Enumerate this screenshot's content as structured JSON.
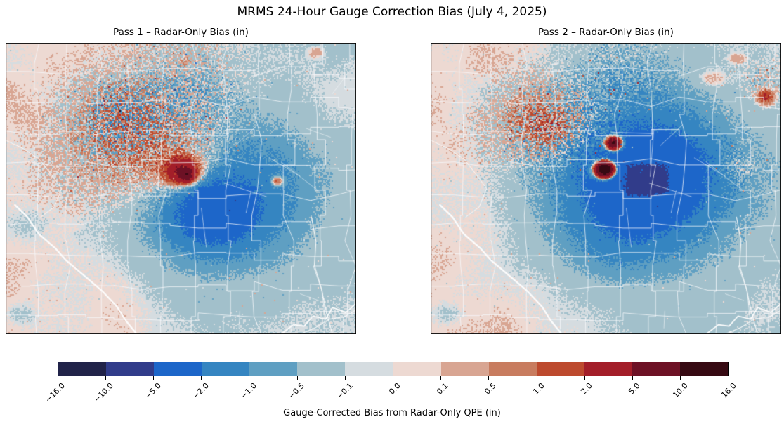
{
  "chart_data": {
    "type": "heatmap",
    "title": "MRMS 24-Hour Gauge Correction Bias (July 4, 2025)",
    "value_range": [
      -16,
      16
    ],
    "colormap": "diverging blue-gray-red (balance-like), 14 discrete bins",
    "panels": [
      {
        "title": "Pass 1 – Radar-Only Bias (in)",
        "seed": 7,
        "base": {
          "west": 0.055,
          "east": -0.085,
          "transition_start": 0.28,
          "transition_width": 0.32
        },
        "gaussians": [
          [
            0.455,
            0.395,
            0.115,
            0.1,
            1.0
          ],
          [
            0.505,
            0.44,
            0.032,
            0.03,
            5.5
          ],
          [
            0.517,
            0.455,
            0.013,
            0.013,
            6.0
          ],
          [
            0.615,
            0.565,
            0.185,
            0.17,
            -1.0
          ],
          [
            0.6,
            0.585,
            0.088,
            0.082,
            -2.6
          ],
          [
            0.755,
            0.42,
            0.105,
            0.1,
            -0.55
          ],
          [
            0.52,
            0.21,
            0.14,
            0.11,
            -0.32
          ],
          [
            0.775,
            0.475,
            0.012,
            0.012,
            2.4
          ],
          [
            0.52,
            0.07,
            0.02,
            0.015,
            0.45
          ],
          [
            0.885,
            0.035,
            0.013,
            0.011,
            0.5
          ],
          [
            0.045,
            0.93,
            0.03,
            0.025,
            -0.25
          ],
          [
            0.06,
            0.62,
            0.05,
            0.04,
            -0.18
          ]
        ],
        "rects": [
          [
            0.535,
            0.487,
            0.128,
            0.1,
            -1.1
          ]
        ],
        "speckle_regions": [
          [
            0.33,
            0.26,
            0.085,
            1.5
          ],
          [
            0.52,
            0.13,
            0.1,
            0.5
          ],
          [
            0.47,
            0.32,
            0.12,
            0.7
          ],
          [
            0.25,
            0.4,
            0.1,
            0.4
          ]
        ],
        "features": [
          "broad positive (red) bias blob west-central, peak ~+5 in dark-red core",
          "broad negative (blue) bias region center/center-east, ~-1 to -5 in",
          "heavily speckled mixed-sign cluster northwest of red blob",
          "pale pink (+0 to +0.1) background west, pale gray/blue-gray east"
        ]
      },
      {
        "title": "Pass 2 – Radar-Only Bias (in)",
        "seed": 21,
        "base": {
          "west": 0.055,
          "east": -0.085,
          "transition_start": 0.28,
          "transition_width": 0.32
        },
        "gaussians": [
          [
            0.6,
            0.47,
            0.205,
            0.19,
            -1.6
          ],
          [
            0.625,
            0.455,
            0.115,
            0.105,
            -2.9
          ],
          [
            0.59,
            0.52,
            0.065,
            0.06,
            -0.8
          ],
          [
            0.55,
            0.655,
            0.12,
            0.1,
            -0.8
          ],
          [
            0.522,
            0.345,
            0.0145,
            0.0145,
            13.0
          ],
          [
            0.497,
            0.435,
            0.018,
            0.018,
            20.0
          ],
          [
            0.315,
            0.265,
            0.075,
            0.065,
            0.8
          ],
          [
            0.35,
            0.305,
            0.042,
            0.04,
            0.9
          ],
          [
            0.955,
            0.185,
            0.016,
            0.016,
            2.4
          ],
          [
            0.8,
            0.125,
            0.032,
            0.022,
            0.5
          ],
          [
            0.875,
            0.055,
            0.016,
            0.012,
            0.5
          ],
          [
            0.88,
            0.42,
            0.035,
            0.03,
            0.4
          ],
          [
            0.55,
            0.15,
            0.15,
            0.11,
            -0.35
          ],
          [
            0.045,
            0.93,
            0.03,
            0.025,
            -0.25
          ]
        ],
        "rects": [
          [
            0.545,
            0.4,
            0.15,
            0.13,
            -0.8
          ]
        ],
        "speckle_regions": [
          [
            0.32,
            0.28,
            0.09,
            1.3
          ],
          [
            0.56,
            0.1,
            0.09,
            0.45
          ],
          [
            0.88,
            0.43,
            0.05,
            0.55
          ],
          [
            0.95,
            0.13,
            0.05,
            0.4
          ],
          [
            0.45,
            0.3,
            0.1,
            0.5
          ]
        ],
        "features": [
          "large deep negative (bright blue) bias core center, ~-2 to -5 in",
          "two intense positive bullseyes (+10 to +16 in) embedded in blue core",
          "diffuse positive (red) speckle cluster northwest",
          "small positive spots northeast; pale pink west / pale gray east background"
        ]
      }
    ],
    "colorbar": {
      "label": "Gauge-Corrected Bias from Radar-Only QPE (in)",
      "units": "in",
      "boundaries": [
        -16,
        -10,
        -5,
        -2,
        -1,
        -0.5,
        -0.1,
        0,
        0.1,
        0.5,
        1,
        2,
        5,
        10,
        16
      ],
      "tick_labels": [
        "−16.0",
        "−10.0",
        "−5.0",
        "−2.0",
        "−1.0",
        "−0.5",
        "−0.1",
        "0.0",
        "0.1",
        "0.5",
        "1.0",
        "2.0",
        "5.0",
        "10.0",
        "16.0"
      ],
      "colors": [
        "#212349",
        "#313c8a",
        "#1d66c9",
        "#3585c1",
        "#5f9fc2",
        "#a2c0cb",
        "#d5dce0",
        "#edd9d2",
        "#d8a592",
        "#c87c5f",
        "#bd4a2e",
        "#a31e29",
        "#6d1125",
        "#370a13"
      ]
    },
    "county_grid": {
      "verticals": [
        0.088,
        0.178,
        0.268,
        0.358,
        0.448,
        0.538,
        0.628,
        0.718,
        0.808,
        0.898,
        0.985
      ],
      "horizontals": [
        0.1,
        0.205,
        0.31,
        0.415,
        0.52,
        0.625,
        0.73,
        0.835,
        0.94
      ],
      "diagonal_count": 14,
      "seed": 3
    },
    "geo_overlays": {
      "river_main": [
        [
          0.025,
          0.555
        ],
        [
          0.065,
          0.6
        ],
        [
          0.095,
          0.655
        ],
        [
          0.14,
          0.705
        ],
        [
          0.175,
          0.75
        ],
        [
          0.225,
          0.805
        ],
        [
          0.275,
          0.855
        ],
        [
          0.315,
          0.905
        ],
        [
          0.345,
          0.955
        ],
        [
          0.37,
          1.0
        ]
      ],
      "river_west": [
        [
          0.0,
          0.335
        ],
        [
          0.05,
          0.36
        ],
        [
          0.095,
          0.4
        ],
        [
          0.13,
          0.45
        ],
        [
          0.16,
          0.5
        ],
        [
          0.14,
          0.56
        ],
        [
          0.1,
          0.6
        ]
      ],
      "river_east": [
        [
          0.872,
          0.6
        ],
        [
          0.887,
          0.68
        ],
        [
          0.878,
          0.76
        ],
        [
          0.9,
          0.84
        ],
        [
          0.915,
          0.92
        ],
        [
          0.93,
          1.0
        ]
      ],
      "coastline": [
        [
          0.79,
          1.0
        ],
        [
          0.82,
          0.965
        ],
        [
          0.85,
          0.975
        ],
        [
          0.875,
          0.94
        ],
        [
          0.91,
          0.95
        ],
        [
          0.935,
          0.91
        ],
        [
          0.97,
          0.925
        ],
        [
          1.0,
          0.895
        ]
      ],
      "coast_islands": [
        [
          0.845,
          1.0
        ],
        [
          0.885,
          0.975
        ],
        [
          0.925,
          0.95
        ],
        [
          0.965,
          0.94
        ],
        [
          1.0,
          0.915
        ]
      ]
    }
  }
}
